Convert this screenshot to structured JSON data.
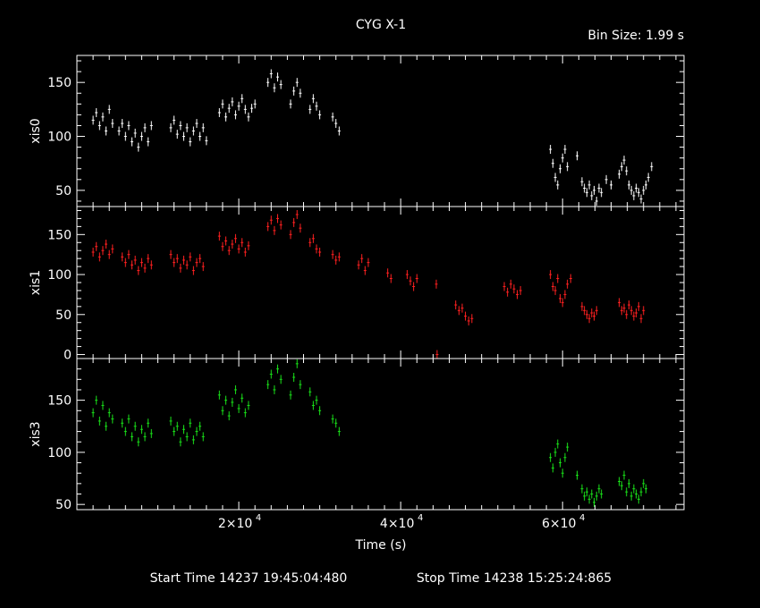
{
  "title": "CYG X-1",
  "bin_size": "Bin Size: 1.99 s",
  "xlabel": "Time (s)",
  "footer": {
    "start": "Start Time 14237 19:45:04:480",
    "stop": "Stop Time 14238 15:25:24:865"
  },
  "colors": {
    "xis0": "#ffffff",
    "xis1": "#ff2020",
    "xis3": "#19e019",
    "axes": "#ffffff",
    "background": "#000000"
  },
  "chart_data": {
    "type": "scatter",
    "xlim": [
      0,
      75000
    ],
    "x_ticks": [
      {
        "value": 20000,
        "mant": "2×10",
        "exp": "4"
      },
      {
        "value": 40000,
        "mant": "4×10",
        "exp": "4"
      },
      {
        "value": 60000,
        "mant": "6×10",
        "exp": "4"
      }
    ],
    "panels": [
      {
        "name": "xis0",
        "ylabel": "xis0",
        "ylim": [
          35,
          175
        ],
        "yticks": [
          50,
          100,
          150
        ],
        "color": "#ffffff",
        "points": [
          [
            2000,
            115
          ],
          [
            2400,
            122
          ],
          [
            2800,
            110
          ],
          [
            3200,
            118
          ],
          [
            3600,
            105
          ],
          [
            4000,
            125
          ],
          [
            4400,
            112
          ],
          [
            5200,
            105
          ],
          [
            5600,
            112
          ],
          [
            6000,
            100
          ],
          [
            6400,
            110
          ],
          [
            6800,
            95
          ],
          [
            7200,
            103
          ],
          [
            7600,
            90
          ],
          [
            8000,
            100
          ],
          [
            8400,
            108
          ],
          [
            8800,
            95
          ],
          [
            9200,
            110
          ],
          [
            11600,
            108
          ],
          [
            12000,
            115
          ],
          [
            12400,
            102
          ],
          [
            12800,
            110
          ],
          [
            13200,
            100
          ],
          [
            13600,
            108
          ],
          [
            14000,
            95
          ],
          [
            14400,
            105
          ],
          [
            14800,
            112
          ],
          [
            15200,
            100
          ],
          [
            15600,
            108
          ],
          [
            16000,
            96
          ],
          [
            17600,
            122
          ],
          [
            18000,
            130
          ],
          [
            18400,
            118
          ],
          [
            18800,
            126
          ],
          [
            19200,
            132
          ],
          [
            19600,
            120
          ],
          [
            20000,
            128
          ],
          [
            20400,
            135
          ],
          [
            20800,
            125
          ],
          [
            21200,
            118
          ],
          [
            21600,
            126
          ],
          [
            22000,
            130
          ],
          [
            23600,
            150
          ],
          [
            24000,
            158
          ],
          [
            24400,
            145
          ],
          [
            24800,
            155
          ],
          [
            25200,
            148
          ],
          [
            26400,
            130
          ],
          [
            26800,
            142
          ],
          [
            27200,
            150
          ],
          [
            27600,
            140
          ],
          [
            28800,
            125
          ],
          [
            29200,
            135
          ],
          [
            29600,
            128
          ],
          [
            30000,
            120
          ],
          [
            31600,
            118
          ],
          [
            32000,
            112
          ],
          [
            32400,
            105
          ],
          [
            58500,
            88
          ],
          [
            58800,
            75
          ],
          [
            59100,
            62
          ],
          [
            59400,
            55
          ],
          [
            59700,
            70
          ],
          [
            60000,
            80
          ],
          [
            60300,
            88
          ],
          [
            60600,
            72
          ],
          [
            61800,
            82
          ],
          [
            62400,
            58
          ],
          [
            62700,
            52
          ],
          [
            63000,
            48
          ],
          [
            63300,
            55
          ],
          [
            63600,
            45
          ],
          [
            63900,
            50
          ],
          [
            64200,
            40
          ],
          [
            64500,
            52
          ],
          [
            64800,
            48
          ],
          [
            65400,
            60
          ],
          [
            66000,
            55
          ],
          [
            67000,
            65
          ],
          [
            67300,
            72
          ],
          [
            67600,
            78
          ],
          [
            67900,
            68
          ],
          [
            68200,
            55
          ],
          [
            68500,
            50
          ],
          [
            68800,
            45
          ],
          [
            69100,
            52
          ],
          [
            69400,
            48
          ],
          [
            69700,
            42
          ],
          [
            70000,
            50
          ],
          [
            70300,
            55
          ],
          [
            70600,
            62
          ],
          [
            71000,
            72
          ]
        ]
      },
      {
        "name": "xis1",
        "ylabel": "xis1",
        "ylim": [
          -5,
          185
        ],
        "yticks": [
          0,
          50,
          100,
          150
        ],
        "color": "#ff2020",
        "points": [
          [
            2000,
            128
          ],
          [
            2400,
            135
          ],
          [
            2800,
            122
          ],
          [
            3200,
            130
          ],
          [
            3600,
            138
          ],
          [
            4000,
            125
          ],
          [
            4400,
            132
          ],
          [
            5600,
            122
          ],
          [
            6000,
            115
          ],
          [
            6400,
            125
          ],
          [
            6800,
            112
          ],
          [
            7200,
            118
          ],
          [
            7600,
            105
          ],
          [
            8000,
            115
          ],
          [
            8400,
            108
          ],
          [
            8800,
            120
          ],
          [
            9200,
            112
          ],
          [
            11600,
            125
          ],
          [
            12000,
            115
          ],
          [
            12400,
            120
          ],
          [
            12800,
            108
          ],
          [
            13200,
            118
          ],
          [
            13600,
            112
          ],
          [
            14000,
            122
          ],
          [
            14400,
            105
          ],
          [
            14800,
            115
          ],
          [
            15200,
            120
          ],
          [
            15600,
            110
          ],
          [
            17600,
            148
          ],
          [
            18000,
            135
          ],
          [
            18400,
            142
          ],
          [
            18800,
            130
          ],
          [
            19200,
            138
          ],
          [
            19600,
            145
          ],
          [
            20000,
            132
          ],
          [
            20400,
            140
          ],
          [
            20800,
            128
          ],
          [
            21200,
            136
          ],
          [
            23600,
            160
          ],
          [
            24000,
            168
          ],
          [
            24400,
            155
          ],
          [
            24800,
            170
          ],
          [
            25200,
            162
          ],
          [
            26400,
            150
          ],
          [
            26800,
            165
          ],
          [
            27200,
            175
          ],
          [
            27600,
            158
          ],
          [
            28800,
            140
          ],
          [
            29200,
            145
          ],
          [
            29600,
            132
          ],
          [
            30000,
            128
          ],
          [
            31600,
            125
          ],
          [
            32000,
            118
          ],
          [
            32400,
            122
          ],
          [
            34800,
            112
          ],
          [
            35200,
            120
          ],
          [
            35600,
            105
          ],
          [
            36000,
            115
          ],
          [
            38400,
            102
          ],
          [
            38800,
            95
          ],
          [
            40800,
            100
          ],
          [
            41200,
            92
          ],
          [
            41600,
            85
          ],
          [
            42000,
            95
          ],
          [
            44400,
            88
          ],
          [
            46800,
            62
          ],
          [
            47200,
            55
          ],
          [
            47600,
            58
          ],
          [
            48000,
            48
          ],
          [
            48400,
            42
          ],
          [
            48800,
            45
          ],
          [
            44500,
            0
          ],
          [
            52800,
            85
          ],
          [
            53200,
            78
          ],
          [
            53600,
            88
          ],
          [
            54000,
            82
          ],
          [
            54400,
            75
          ],
          [
            54800,
            80
          ],
          [
            58500,
            100
          ],
          [
            58800,
            85
          ],
          [
            59100,
            80
          ],
          [
            59400,
            95
          ],
          [
            59700,
            70
          ],
          [
            60000,
            65
          ],
          [
            60300,
            75
          ],
          [
            60600,
            88
          ],
          [
            61000,
            95
          ],
          [
            62400,
            60
          ],
          [
            62700,
            55
          ],
          [
            63000,
            50
          ],
          [
            63300,
            45
          ],
          [
            63600,
            52
          ],
          [
            63900,
            48
          ],
          [
            64200,
            55
          ],
          [
            67000,
            65
          ],
          [
            67300,
            55
          ],
          [
            67600,
            58
          ],
          [
            67900,
            50
          ],
          [
            68200,
            62
          ],
          [
            68500,
            55
          ],
          [
            68800,
            48
          ],
          [
            69100,
            52
          ],
          [
            69400,
            60
          ],
          [
            69700,
            45
          ],
          [
            70000,
            55
          ]
        ]
      },
      {
        "name": "xis3",
        "ylabel": "xis3",
        "ylim": [
          45,
          190
        ],
        "yticks": [
          50,
          100,
          150
        ],
        "color": "#19e019",
        "points": [
          [
            2000,
            138
          ],
          [
            2400,
            150
          ],
          [
            2800,
            130
          ],
          [
            3200,
            145
          ],
          [
            3600,
            125
          ],
          [
            4000,
            138
          ],
          [
            4400,
            132
          ],
          [
            5600,
            128
          ],
          [
            6000,
            120
          ],
          [
            6400,
            132
          ],
          [
            6800,
            115
          ],
          [
            7200,
            125
          ],
          [
            7600,
            110
          ],
          [
            8000,
            122
          ],
          [
            8400,
            115
          ],
          [
            8800,
            128
          ],
          [
            9200,
            118
          ],
          [
            11600,
            130
          ],
          [
            12000,
            120
          ],
          [
            12400,
            125
          ],
          [
            12800,
            110
          ],
          [
            13200,
            122
          ],
          [
            13600,
            115
          ],
          [
            14000,
            128
          ],
          [
            14400,
            112
          ],
          [
            14800,
            120
          ],
          [
            15200,
            125
          ],
          [
            15600,
            115
          ],
          [
            17600,
            155
          ],
          [
            18000,
            140
          ],
          [
            18400,
            150
          ],
          [
            18800,
            135
          ],
          [
            19200,
            148
          ],
          [
            19600,
            160
          ],
          [
            20000,
            142
          ],
          [
            20400,
            152
          ],
          [
            20800,
            138
          ],
          [
            21200,
            145
          ],
          [
            23600,
            165
          ],
          [
            24000,
            175
          ],
          [
            24400,
            160
          ],
          [
            24800,
            180
          ],
          [
            25200,
            170
          ],
          [
            26400,
            155
          ],
          [
            26800,
            172
          ],
          [
            27200,
            185
          ],
          [
            27600,
            165
          ],
          [
            28800,
            158
          ],
          [
            29200,
            145
          ],
          [
            29600,
            150
          ],
          [
            30000,
            140
          ],
          [
            31600,
            132
          ],
          [
            32000,
            128
          ],
          [
            32400,
            120
          ],
          [
            58500,
            95
          ],
          [
            58800,
            85
          ],
          [
            59100,
            100
          ],
          [
            59400,
            108
          ],
          [
            59700,
            90
          ],
          [
            60000,
            80
          ],
          [
            60300,
            95
          ],
          [
            60600,
            105
          ],
          [
            61800,
            78
          ],
          [
            62400,
            65
          ],
          [
            62700,
            58
          ],
          [
            63000,
            62
          ],
          [
            63300,
            55
          ],
          [
            63600,
            60
          ],
          [
            63900,
            52
          ],
          [
            64200,
            58
          ],
          [
            64500,
            65
          ],
          [
            64800,
            60
          ],
          [
            67000,
            72
          ],
          [
            67300,
            68
          ],
          [
            67600,
            78
          ],
          [
            67900,
            62
          ],
          [
            68200,
            70
          ],
          [
            68500,
            58
          ],
          [
            68800,
            65
          ],
          [
            69100,
            60
          ],
          [
            69400,
            55
          ],
          [
            69700,
            62
          ],
          [
            70000,
            70
          ],
          [
            70300,
            65
          ]
        ]
      }
    ]
  }
}
